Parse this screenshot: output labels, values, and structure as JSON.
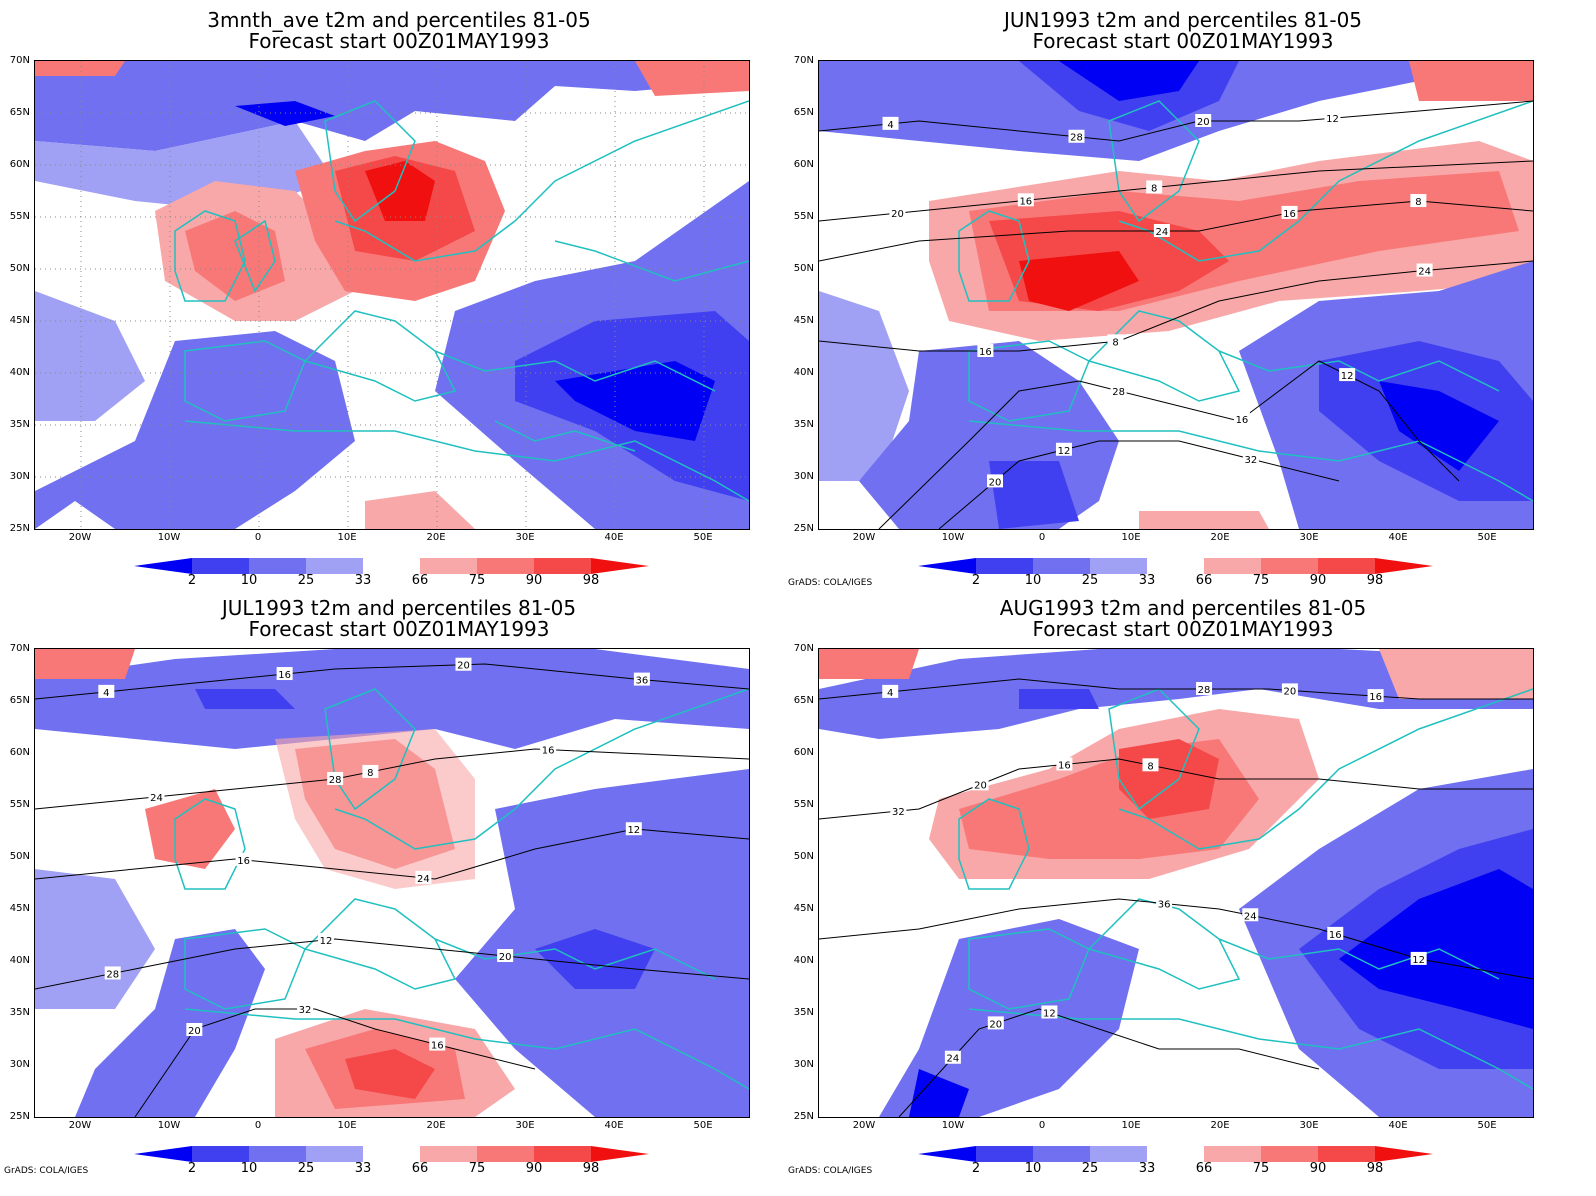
{
  "panels": [
    {
      "title_line1": "3mnth_ave t2m and percentiles 81-05",
      "title_line2": "Forecast start 00Z01MAY1993",
      "show_grads": false
    },
    {
      "title_line1": "JUN1993 t2m and percentiles 81-05",
      "title_line2": "Forecast start 00Z01MAY1993",
      "show_grads": true
    },
    {
      "title_line1": "JUL1993 t2m and percentiles 81-05",
      "title_line2": "Forecast start 00Z01MAY1993",
      "show_grads": true
    },
    {
      "title_line1": "AUG1993 t2m and percentiles 81-05",
      "title_line2": "Forecast start 00Z01MAY1993",
      "show_grads": true
    }
  ],
  "lat_labels": [
    "70N",
    "65N",
    "60N",
    "55N",
    "50N",
    "45N",
    "40N",
    "35N",
    "30N",
    "25N"
  ],
  "lon_labels": [
    "20W",
    "10W",
    "0",
    "10E",
    "20E",
    "30E",
    "40E",
    "50E"
  ],
  "colorbar_labels": [
    "2",
    "10",
    "25",
    "33",
    "66",
    "75",
    "90",
    "98"
  ],
  "grads_credit": "GrADS: COLA/IGES",
  "colors": {
    "blue_dark": "#0000f5",
    "blue_mid": "#4040f0",
    "blue_light": "#7070f0",
    "blue_pale": "#a0a0f5",
    "red_pale": "#f8a8a8",
    "red_light": "#f87878",
    "red_mid": "#f54848",
    "red_dark": "#f01010",
    "coast": "#20c0c0"
  },
  "contours": [
    [],
    [
      "4",
      "8",
      "8",
      "8",
      "12",
      "12",
      "12",
      "16",
      "16",
      "16",
      "16",
      "20",
      "20",
      "20",
      "24",
      "24",
      "28",
      "32",
      "28"
    ],
    [
      "4",
      "8",
      "12",
      "12",
      "16",
      "16",
      "16",
      "16",
      "20",
      "20",
      "20",
      "24",
      "24",
      "28",
      "32",
      "36",
      "28"
    ],
    [
      "4",
      "8",
      "12",
      "12",
      "16",
      "16",
      "16",
      "20",
      "20",
      "20",
      "24",
      "24",
      "28",
      "32",
      "36"
    ]
  ]
}
